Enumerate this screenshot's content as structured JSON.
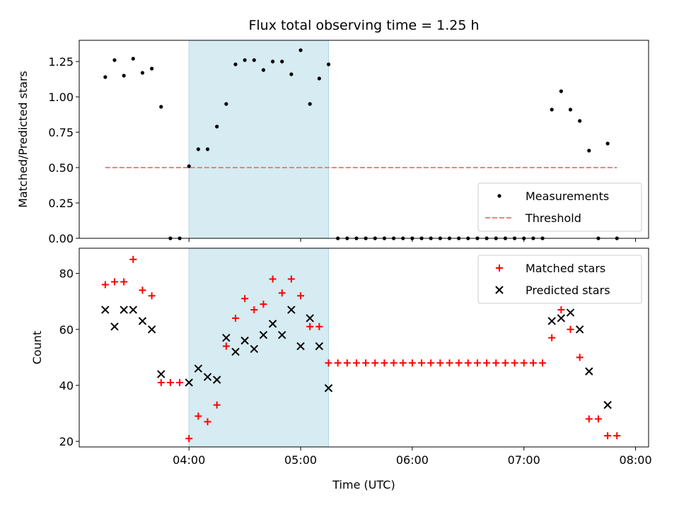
{
  "chart_data": [
    {
      "type": "scatter",
      "title": "Flux total observing time = 1.25 h",
      "ylabel": "Matched/Predicted stars",
      "xlabel": "",
      "xlim": [
        "03:01",
        "08:07"
      ],
      "ylim": [
        0,
        1.4
      ],
      "yticks": [
        "0.00",
        "0.25",
        "0.50",
        "0.75",
        "1.00",
        "1.25"
      ],
      "ytick_values": [
        0,
        0.25,
        0.5,
        0.75,
        1.0,
        1.25
      ],
      "shaded_span": [
        "04:00",
        "05:15"
      ],
      "legend_position": "lower-right",
      "legend": [
        {
          "label": "Measurements",
          "marker": "dot",
          "color": "#000000"
        },
        {
          "label": "Threshold",
          "marker": "dashed-line",
          "color": "#f08080"
        }
      ],
      "threshold": {
        "name": "Threshold",
        "x": [
          "03:15",
          "07:50"
        ],
        "y": 0.5,
        "color": "#f08080"
      },
      "series": [
        {
          "name": "Measurements",
          "color": "#000000",
          "x": [
            "03:15",
            "03:20",
            "03:25",
            "03:30",
            "03:35",
            "03:40",
            "03:45",
            "03:50",
            "03:55",
            "04:00",
            "04:05",
            "04:10",
            "04:15",
            "04:20",
            "04:25",
            "04:30",
            "04:35",
            "04:40",
            "04:45",
            "04:50",
            "04:55",
            "05:00",
            "05:05",
            "05:10",
            "05:15",
            "05:20",
            "05:25",
            "05:30",
            "05:35",
            "05:40",
            "05:45",
            "05:50",
            "05:55",
            "06:00",
            "06:05",
            "06:10",
            "06:15",
            "06:20",
            "06:25",
            "06:30",
            "06:35",
            "06:40",
            "06:45",
            "06:50",
            "06:55",
            "07:00",
            "07:05",
            "07:10",
            "07:15",
            "07:20",
            "07:25",
            "07:30",
            "07:35",
            "07:40",
            "07:45",
            "07:50"
          ],
          "y": [
            1.14,
            1.26,
            1.15,
            1.27,
            1.17,
            1.2,
            0.93,
            0,
            0,
            0.51,
            0.63,
            0.63,
            0.79,
            0.95,
            1.23,
            1.26,
            1.26,
            1.19,
            1.25,
            1.25,
            1.16,
            1.33,
            0.95,
            1.13,
            1.23,
            0,
            0,
            0,
            0,
            0,
            0,
            0,
            0,
            0,
            0,
            0,
            0,
            0,
            0,
            0,
            0,
            0,
            0,
            0,
            0,
            0,
            0,
            0,
            0.91,
            1.04,
            0.91,
            0.83,
            0.62,
            0,
            0.67,
            0
          ]
        }
      ]
    },
    {
      "type": "scatter",
      "title": "",
      "ylabel": "Count",
      "xlabel": "Time (UTC)",
      "xlim": [
        "03:01",
        "08:07"
      ],
      "ylim": [
        18,
        89
      ],
      "yticks": [
        "20",
        "40",
        "60",
        "80"
      ],
      "ytick_values": [
        20,
        40,
        60,
        80
      ],
      "xticks": [
        "04:00",
        "05:00",
        "06:00",
        "07:00",
        "08:00"
      ],
      "shaded_span": [
        "04:00",
        "05:15"
      ],
      "legend_position": "upper-right",
      "legend": [
        {
          "label": "Matched stars",
          "marker": "plus",
          "color": "#ff0000"
        },
        {
          "label": "Predicted stars",
          "marker": "x",
          "color": "#000000"
        }
      ],
      "series": [
        {
          "name": "Matched stars",
          "marker": "plus",
          "color": "#ff0000",
          "x": [
            "03:15",
            "03:20",
            "03:25",
            "03:30",
            "03:35",
            "03:40",
            "03:45",
            "03:50",
            "03:55",
            "04:00",
            "04:05",
            "04:10",
            "04:15",
            "04:20",
            "04:25",
            "04:30",
            "04:35",
            "04:40",
            "04:45",
            "04:50",
            "04:55",
            "05:00",
            "05:05",
            "05:10",
            "05:15",
            "05:20",
            "05:25",
            "05:30",
            "05:35",
            "05:40",
            "05:45",
            "05:50",
            "05:55",
            "06:00",
            "06:05",
            "06:10",
            "06:15",
            "06:20",
            "06:25",
            "06:30",
            "06:35",
            "06:40",
            "06:45",
            "06:50",
            "06:55",
            "07:00",
            "07:05",
            "07:10",
            "07:15",
            "07:20",
            "07:25",
            "07:30",
            "07:35",
            "07:40",
            "07:45",
            "07:50"
          ],
          "y": [
            76,
            77,
            77,
            85,
            74,
            72,
            41,
            41,
            41,
            21,
            29,
            27,
            33,
            54,
            64,
            71,
            67,
            69,
            78,
            73,
            78,
            72,
            61,
            61,
            48,
            48,
            48,
            48,
            48,
            48,
            48,
            48,
            48,
            48,
            48,
            48,
            48,
            48,
            48,
            48,
            48,
            48,
            48,
            48,
            48,
            48,
            48,
            48,
            57,
            67,
            60,
            50,
            28,
            28,
            22,
            22
          ]
        },
        {
          "name": "Predicted stars",
          "marker": "x",
          "color": "#000000",
          "x": [
            "03:15",
            "03:20",
            "03:25",
            "03:30",
            "03:35",
            "03:40",
            "03:45",
            "04:00",
            "04:05",
            "04:10",
            "04:15",
            "04:20",
            "04:25",
            "04:30",
            "04:35",
            "04:40",
            "04:45",
            "04:50",
            "04:55",
            "05:00",
            "05:05",
            "05:10",
            "05:15",
            "07:15",
            "07:20",
            "07:25",
            "07:30",
            "07:35",
            "07:45"
          ],
          "y": [
            67,
            61,
            67,
            67,
            63,
            60,
            44,
            41,
            46,
            43,
            42,
            57,
            52,
            56,
            53,
            58,
            62,
            58,
            67,
            54,
            64,
            54,
            39,
            63,
            64,
            66,
            60,
            45,
            33
          ]
        }
      ]
    }
  ]
}
